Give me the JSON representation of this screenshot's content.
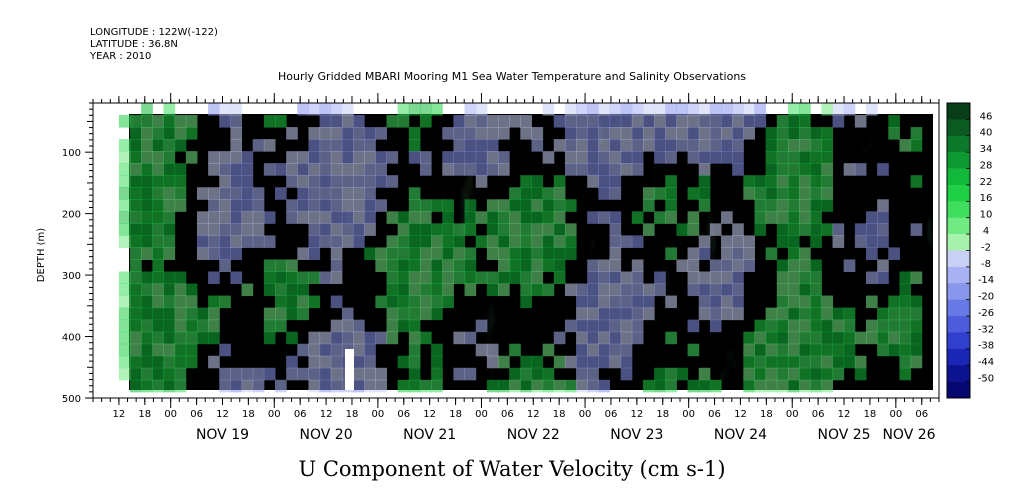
{
  "header": {
    "longitude": "LONGITUDE : 122W(-122)",
    "latitude": "LATITUDE : 36.8N",
    "year": "YEAR : 2010"
  },
  "chart_data": {
    "type": "heatmap",
    "title": "Hourly Gridded MBARI Mooring M1 Sea Water Temperature and Salinity Observations",
    "variable_title": "U Component of Water Velocity (cm s-1)",
    "ylabel": "DEPTH (m)",
    "ylim": [
      500,
      20
    ],
    "y_ticks": [
      100,
      200,
      300,
      400,
      500
    ],
    "x_start": "2010-11-18T06:00",
    "x_end": "2010-11-26T10:00",
    "x_hour_ticks": [
      "12",
      "18",
      "00",
      "06",
      "12",
      "18",
      "00",
      "06",
      "12",
      "18",
      "00",
      "06",
      "12",
      "18",
      "00",
      "06",
      "12",
      "18",
      "00",
      "06",
      "12",
      "18",
      "00",
      "06",
      "12",
      "18",
      "00",
      "06",
      "12",
      "18",
      "00",
      "06"
    ],
    "x_day_labels": [
      "NOV 19",
      "NOV 20",
      "NOV 21",
      "NOV 22",
      "NOV 23",
      "NOV 24",
      "NOV 25",
      "NOV 26"
    ],
    "data_range": {
      "time_start": "2010-11-18T12:00",
      "time_end": "2010-11-26T06:00",
      "depth_min": 20,
      "depth_max": 490
    },
    "colorbar": {
      "labels": [
        "46",
        "40",
        "34",
        "28",
        "22",
        "16",
        "10",
        "4",
        "-2",
        "-8",
        "-14",
        "-20",
        "-26",
        "-32",
        "-38",
        "-44",
        "-50"
      ],
      "colors": [
        "#083d1a",
        "#0a5a22",
        "#0c7a2a",
        "#0e9a32",
        "#12b83a",
        "#1fd046",
        "#3fde5e",
        "#72ea84",
        "#a6f2ac",
        "#c8d0f6",
        "#a8b2f2",
        "#8896ec",
        "#6878e4",
        "#4c5cda",
        "#3140cc",
        "#1c26b4",
        "#0c1290",
        "#050870"
      ]
    }
  }
}
